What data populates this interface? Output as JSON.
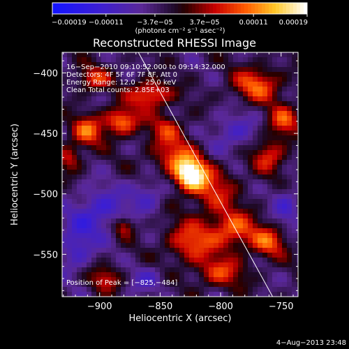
{
  "chart_data": {
    "type": "heatmap",
    "title": "Reconstructed RHESSI Image",
    "xlabel": "Heliocentric X (arcsec)",
    "ylabel": "Heliocentric Y (arcsec)",
    "xlim": [
      -931,
      -736
    ],
    "ylim": [
      -585,
      -383
    ],
    "x_ticks": [
      -900,
      -850,
      -800,
      -750
    ],
    "y_ticks": [
      -550,
      -500,
      -450,
      -400
    ],
    "x_tick_labels": [
      "−900",
      "−850",
      "−800",
      "−750"
    ],
    "y_tick_labels": [
      "−550",
      "−500",
      "−450",
      "−400"
    ],
    "colorbar": {
      "range": [
        -0.00019,
        0.00019
      ],
      "tick_values": [
        -0.00019,
        -0.00011,
        -3.7e-05,
        3.7e-05,
        0.00011,
        0.00019
      ],
      "tick_labels": [
        "−0.00019",
        "−0.00011",
        "−3.7e−05",
        "3.7e−05",
        "0.00011",
        "0.00019"
      ],
      "label": "(photons cm⁻² s⁻¹ asec⁻²)"
    },
    "info_lines": [
      "16−Sep−2010 09:10:52.000 to 09:14:32.000",
      "Detectors: 4F 5F 6F 7F 8F, Att 0",
      "Energy Range: 12.0 − 25.0 keV",
      "Clean      Total counts: 2.85E+03"
    ],
    "peak": {
      "x": -825,
      "y": -484,
      "label": "Position of Peak = [−825,−484]"
    },
    "limb_line": [
      [
        -868,
        -383
      ],
      [
        -757,
        -585
      ]
    ],
    "sources": [
      {
        "x": -825,
        "y": -484,
        "amp": 1.0,
        "sx": 9,
        "sy": 9
      },
      {
        "x": -838,
        "y": -468,
        "amp": 0.45,
        "sx": 14,
        "sy": 12
      },
      {
        "x": -806,
        "y": -497,
        "amp": 0.4,
        "sx": 14,
        "sy": 14
      },
      {
        "x": -882,
        "y": -440,
        "amp": 0.65,
        "sx": 10,
        "sy": 8
      },
      {
        "x": -910,
        "y": -448,
        "amp": 0.55,
        "sx": 9,
        "sy": 9
      },
      {
        "x": -858,
        "y": -418,
        "amp": 0.6,
        "sx": 12,
        "sy": 8
      },
      {
        "x": -905,
        "y": -405,
        "amp": 0.45,
        "sx": 10,
        "sy": 7
      },
      {
        "x": -925,
        "y": -470,
        "amp": 0.4,
        "sx": 7,
        "sy": 8
      },
      {
        "x": -770,
        "y": -410,
        "amp": 0.55,
        "sx": 14,
        "sy": 10
      },
      {
        "x": -748,
        "y": -440,
        "amp": 0.5,
        "sx": 9,
        "sy": 9
      },
      {
        "x": -760,
        "y": -468,
        "amp": 0.45,
        "sx": 10,
        "sy": 10
      },
      {
        "x": -790,
        "y": -530,
        "amp": 0.55,
        "sx": 14,
        "sy": 11
      },
      {
        "x": -825,
        "y": -540,
        "amp": 0.5,
        "sx": 14,
        "sy": 12
      },
      {
        "x": -760,
        "y": -540,
        "amp": 0.5,
        "sx": 10,
        "sy": 9
      },
      {
        "x": -800,
        "y": -565,
        "amp": 0.45,
        "sx": 14,
        "sy": 9
      },
      {
        "x": -895,
        "y": -570,
        "amp": 0.4,
        "sx": 9,
        "sy": 7
      },
      {
        "x": -880,
        "y": -527,
        "amp": 0.45,
        "sx": 6,
        "sy": 6
      },
      {
        "x": -845,
        "y": -445,
        "amp": 0.35,
        "sx": 10,
        "sy": 8
      },
      {
        "x": -900,
        "y": -515,
        "amp": -0.4,
        "sx": 16,
        "sy": 14
      },
      {
        "x": -920,
        "y": -545,
        "amp": -0.35,
        "sx": 10,
        "sy": 14
      },
      {
        "x": -860,
        "y": -500,
        "amp": -0.3,
        "sx": 10,
        "sy": 10
      },
      {
        "x": -790,
        "y": -450,
        "amp": -0.3,
        "sx": 14,
        "sy": 12
      },
      {
        "x": -745,
        "y": -510,
        "amp": -0.3,
        "sx": 8,
        "sy": 12
      },
      {
        "x": -860,
        "y": -570,
        "amp": -0.25,
        "sx": 10,
        "sy": 8
      }
    ]
  },
  "footer": {
    "timestamp": "4−Aug−2013 23:48"
  }
}
